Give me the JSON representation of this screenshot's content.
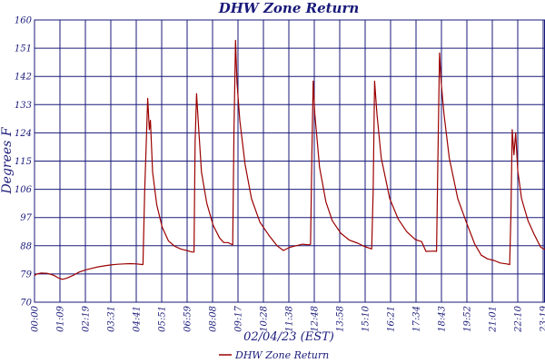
{
  "chart_data": {
    "type": "line",
    "title": "DHW Zone Return",
    "xlabel": "02/04/23 (EST)",
    "ylabel": "Degrees F",
    "ylim": [
      70,
      160
    ],
    "xlim_hours": [
      0,
      24
    ],
    "y_ticks": [
      "160",
      "151",
      "142",
      "133",
      "124",
      "115",
      "106",
      "97",
      "88",
      "79",
      "70"
    ],
    "x_tick_labels": [
      "00:00",
      "01:09",
      "02:19",
      "03:31",
      "04:41",
      "05:51",
      "06:59",
      "08:08",
      "09:17",
      "10:28",
      "11:38",
      "12:48",
      "13:58",
      "15:10",
      "16:21",
      "17:34",
      "18:43",
      "19:52",
      "21:01",
      "22:10",
      "23:19"
    ],
    "grid": true,
    "legend_position": "bottom-center",
    "colors": {
      "series": "#9b0000",
      "grid": "#1a1a7a",
      "text": "#1a1a7a"
    },
    "series": [
      {
        "name": "DHW Zone Return",
        "points": [
          [
            0.0,
            78.5
          ],
          [
            0.1,
            79.0
          ],
          [
            0.3,
            79.3
          ],
          [
            0.6,
            79.2
          ],
          [
            0.9,
            78.6
          ],
          [
            1.1,
            77.8
          ],
          [
            1.3,
            77.3
          ],
          [
            1.5,
            77.6
          ],
          [
            1.8,
            78.5
          ],
          [
            2.1,
            79.6
          ],
          [
            2.4,
            80.3
          ],
          [
            2.7,
            80.8
          ],
          [
            3.0,
            81.3
          ],
          [
            3.3,
            81.6
          ],
          [
            3.6,
            81.9
          ],
          [
            3.9,
            82.1
          ],
          [
            4.2,
            82.2
          ],
          [
            4.5,
            82.3
          ],
          [
            4.8,
            82.2
          ],
          [
            5.05,
            82.0
          ],
          [
            5.1,
            82.0
          ],
          [
            5.18,
            105.5
          ],
          [
            5.32,
            135.0
          ],
          [
            5.4,
            125.0
          ],
          [
            5.45,
            128.0
          ],
          [
            5.55,
            111.5
          ],
          [
            5.75,
            101.0
          ],
          [
            6.0,
            94.0
          ],
          [
            6.3,
            89.5
          ],
          [
            6.6,
            87.8
          ],
          [
            6.9,
            86.9
          ],
          [
            7.2,
            86.4
          ],
          [
            7.4,
            86.0
          ],
          [
            7.5,
            86.0
          ],
          [
            7.55,
            121.0
          ],
          [
            7.62,
            136.5
          ],
          [
            7.72,
            125.0
          ],
          [
            7.85,
            111.5
          ],
          [
            8.1,
            101.5
          ],
          [
            8.4,
            94.5
          ],
          [
            8.7,
            90.5
          ],
          [
            8.9,
            89.0
          ],
          [
            9.1,
            89.0
          ],
          [
            9.25,
            88.5
          ],
          [
            9.32,
            88.3
          ],
          [
            9.38,
            125.0
          ],
          [
            9.45,
            153.5
          ],
          [
            9.52,
            140.0
          ],
          [
            9.65,
            128.0
          ],
          [
            9.9,
            114.0
          ],
          [
            10.2,
            103.0
          ],
          [
            10.6,
            95.5
          ],
          [
            11.0,
            91.5
          ],
          [
            11.4,
            88.0
          ],
          [
            11.7,
            86.5
          ],
          [
            12.0,
            87.5
          ],
          [
            12.3,
            88.0
          ],
          [
            12.6,
            88.5
          ],
          [
            12.9,
            88.3
          ],
          [
            12.98,
            88.5
          ],
          [
            13.04,
            118.0
          ],
          [
            13.1,
            140.5
          ],
          [
            13.18,
            130.0
          ],
          [
            13.4,
            113.0
          ],
          [
            13.7,
            102.0
          ],
          [
            14.0,
            96.0
          ],
          [
            14.4,
            92.0
          ],
          [
            14.8,
            89.8
          ],
          [
            15.2,
            88.8
          ],
          [
            15.5,
            87.8
          ],
          [
            15.85,
            87.0
          ],
          [
            15.92,
            105.0
          ],
          [
            15.99,
            140.5
          ],
          [
            16.1,
            130.0
          ],
          [
            16.3,
            116.0
          ],
          [
            16.7,
            103.0
          ],
          [
            17.1,
            96.5
          ],
          [
            17.5,
            92.5
          ],
          [
            17.9,
            90.0
          ],
          [
            18.2,
            89.3
          ],
          [
            18.4,
            86.2
          ],
          [
            18.8,
            86.3
          ],
          [
            18.9,
            86.2
          ],
          [
            18.96,
            114.0
          ],
          [
            19.04,
            149.5
          ],
          [
            19.12,
            140.0
          ],
          [
            19.25,
            130.0
          ],
          [
            19.5,
            116.0
          ],
          [
            19.9,
            103.0
          ],
          [
            20.3,
            95.5
          ],
          [
            20.7,
            88.5
          ],
          [
            21.0,
            85.0
          ],
          [
            21.3,
            83.8
          ],
          [
            21.6,
            83.3
          ],
          [
            21.9,
            82.5
          ],
          [
            22.2,
            82.2
          ],
          [
            22.34,
            82.0
          ],
          [
            22.4,
            98.0
          ],
          [
            22.46,
            125.0
          ],
          [
            22.54,
            117.0
          ],
          [
            22.62,
            124.0
          ],
          [
            22.72,
            112.0
          ],
          [
            22.9,
            103.0
          ],
          [
            23.2,
            96.0
          ],
          [
            23.5,
            91.5
          ],
          [
            23.8,
            87.5
          ],
          [
            24.0,
            86.8
          ]
        ]
      }
    ]
  }
}
